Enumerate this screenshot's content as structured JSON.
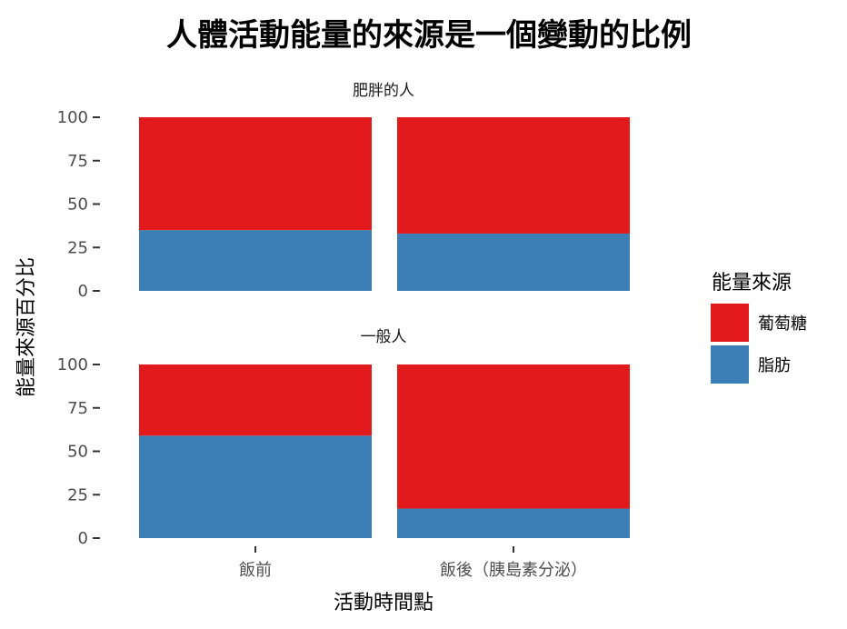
{
  "colors": {
    "glucose": "#e31a1c",
    "fat": "#3b7fb6"
  },
  "chart_data": {
    "type": "bar",
    "stacked": true,
    "title": "人體活動能量的來源是一個變動的比例",
    "xlabel": "活動時間點",
    "ylabel": "能量來源百分比",
    "ylim": [
      0,
      100
    ],
    "yticks": [
      0,
      25,
      50,
      75,
      100
    ],
    "categories": [
      "飯前",
      "飯後（胰島素分泌）"
    ],
    "legend": {
      "title": "能量來源",
      "position": "right",
      "entries": [
        "葡萄糖",
        "脂肪"
      ]
    },
    "grid": false,
    "facets": [
      {
        "label": "肥胖的人",
        "series": [
          {
            "name": "脂肪",
            "values": [
              35,
              33
            ]
          },
          {
            "name": "葡萄糖",
            "values": [
              65,
              67
            ]
          }
        ]
      },
      {
        "label": "一般人",
        "series": [
          {
            "name": "脂肪",
            "values": [
              59,
              17
            ]
          },
          {
            "name": "葡萄糖",
            "values": [
              41,
              83
            ]
          }
        ]
      }
    ]
  }
}
